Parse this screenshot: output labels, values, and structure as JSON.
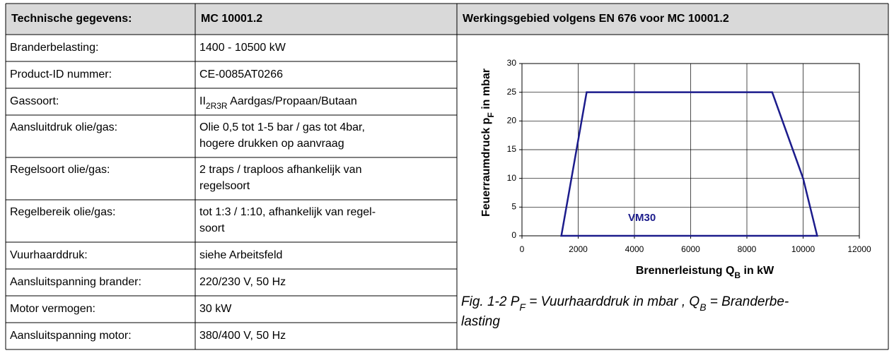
{
  "table": {
    "header": [
      "Technische gegevens:",
      "MC 10001.2",
      "Werkingsgebied volgens EN 676 voor MC 10001.2"
    ],
    "rows": [
      {
        "label": "Branderbelasting:",
        "value": [
          "1400 - 10500 kW"
        ]
      },
      {
        "label": "Product-ID nummer:",
        "value": [
          "CE-0085AT0266"
        ]
      },
      {
        "label": "Gassoort:",
        "value": [
          [
            "II",
            "2R3R",
            "  Aardgas/Propaan/Butaan"
          ]
        ]
      },
      {
        "label": "Aansluitdruk olie/gas:",
        "value": [
          "Olie 0,5 tot 1-5 bar / gas tot 4bar,",
          "hogere drukken op aanvraag"
        ]
      },
      {
        "label": "Regelsoort olie/gas:",
        "value": [
          "2 traps / traploos afhankelijk van",
          "regelsoort"
        ]
      },
      {
        "label": "Regelbereik olie/gas:",
        "value": [
          "tot 1:3 / 1:10, afhankelijk  van regel-",
          "soort"
        ]
      },
      {
        "label": "Vuurhaarddruk:",
        "value": [
          "siehe Arbeitsfeld"
        ]
      },
      {
        "label": "Aansluitspanning brander:",
        "value": [
          "220/230 V, 50 Hz"
        ]
      },
      {
        "label": "Motor vermogen:",
        "value": [
          "30 kW"
        ]
      },
      {
        "label": "Aansluitspanning motor:",
        "value": [
          "380/400 V, 50 Hz"
        ]
      }
    ]
  },
  "chart": {
    "type": "area",
    "x": [
      1400,
      2300,
      8900,
      10000,
      10500
    ],
    "values": [
      0,
      25,
      25,
      10,
      0
    ],
    "color": "#1c1c8c",
    "annotation": "VM30",
    "xlabel": [
      "Brennerleistung Q",
      "B",
      " in kW"
    ],
    "ylabel": [
      "Feuerraumdruck p",
      "F",
      " in mbar"
    ],
    "xlim": [
      0,
      12000
    ],
    "ylim": [
      0,
      30
    ],
    "xticks": [
      0,
      2000,
      4000,
      6000,
      8000,
      10000,
      12000
    ],
    "yticks": [
      0,
      5,
      10,
      15,
      20,
      25,
      30
    ],
    "grid": true
  },
  "caption": [
    [
      "Fig. 1-2 P",
      "F",
      " = Vuurhaarddruk in mbar , Q",
      "B",
      " = Branderbe-"
    ],
    [
      "lasting"
    ]
  ]
}
